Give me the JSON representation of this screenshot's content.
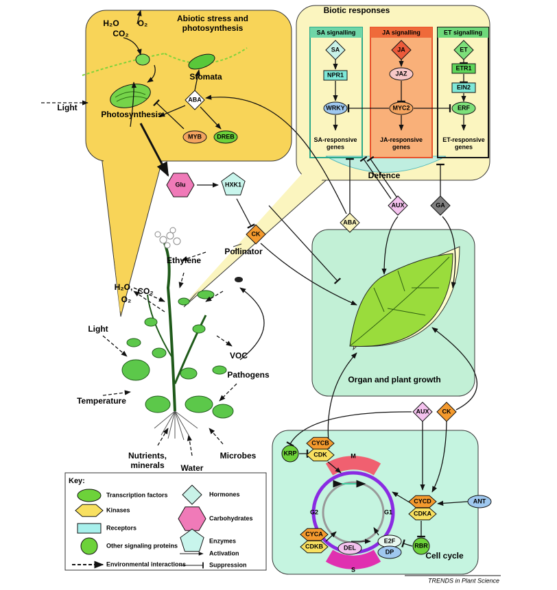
{
  "abiotic": {
    "title": [
      "Abiotic stress and",
      "photosynthesis"
    ],
    "h2o": "H₂O",
    "co2": "CO₂",
    "o2": "O₂",
    "stomata": "Stomata",
    "photosynthesis": "Photosynthesis",
    "aba": "ABA",
    "myb": "MYB",
    "dreb": "DREB"
  },
  "light_input": "Light",
  "biotic": {
    "title": "Biotic responses",
    "sa": {
      "title": "SA signalling",
      "nodes": [
        "SA",
        "NPR1",
        "WRKY"
      ],
      "genes": [
        "SA-responsive",
        "genes"
      ]
    },
    "ja": {
      "title": "JA signalling",
      "nodes": [
        "JA",
        "JAZ",
        "MYC2"
      ],
      "genes": [
        "JA-responsive",
        "genes"
      ]
    },
    "et": {
      "title": "ET signalling",
      "nodes": [
        "ET",
        "ETR1",
        "EIN2",
        "ERF"
      ],
      "genes": [
        "ET-responsive",
        "genes"
      ]
    },
    "defence": "Defence"
  },
  "signals": {
    "glu": "Glu",
    "hxk1": "HXK1",
    "ck": "CK",
    "aba": "ABA",
    "aux": "AUX",
    "ga": "GA"
  },
  "plant": {
    "pollinator": "Pollinator",
    "ethylene": "Ethylene",
    "h2o": "H₂O,",
    "co2": "CO₂",
    "o2": "O₂",
    "light": "Light",
    "voc": "VOC",
    "temperature": "Temperature",
    "pathogens": "Pathogens",
    "nutrients": [
      "Nutrients,",
      "minerals"
    ],
    "water": "Water",
    "microbes": "Microbes"
  },
  "growth": {
    "title": "Organ and plant growth"
  },
  "cell_cycle": {
    "title": "Cell cycle",
    "aux": "AUX",
    "ck": "CK",
    "krp": "KRP",
    "cycb": "CYCB",
    "cdk": "CDK",
    "m": "M",
    "g2": "G2",
    "g1": "G1",
    "s": "S",
    "cycd": "CYCD",
    "cdka": "CDKA",
    "ant": "ANT",
    "cyca": "CYCA",
    "cdkb": "CDKB",
    "e2f": "E2F",
    "dp": "DP",
    "del": "DEL",
    "rbr": "RBR"
  },
  "key": {
    "title": "Key:",
    "items": [
      "Transcription factors",
      "Kinases",
      "Receptors",
      "Other signaling proteins",
      "Environmental interactions",
      "Hormones",
      "Carbohydrates",
      "Enzymes",
      "Activation",
      "Suppression"
    ]
  },
  "footer": "TRENDS in Plant Science"
}
